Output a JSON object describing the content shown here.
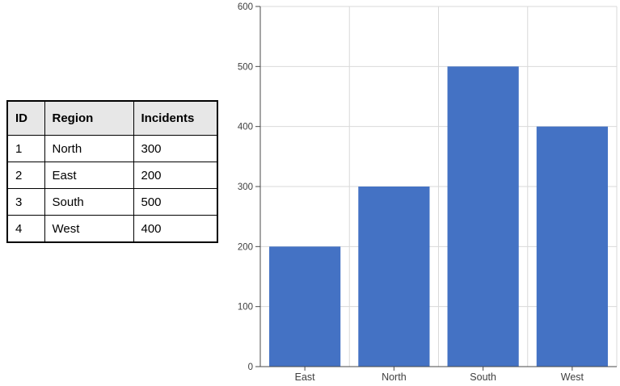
{
  "table": {
    "headers": [
      "ID",
      "Region",
      "Incidents"
    ],
    "rows": [
      [
        "1",
        "North",
        "300"
      ],
      [
        "2",
        "East",
        "200"
      ],
      [
        "3",
        "South",
        "500"
      ],
      [
        "4",
        "West",
        "400"
      ]
    ]
  },
  "chart_data": {
    "type": "bar",
    "categories": [
      "East",
      "North",
      "South",
      "West"
    ],
    "values": [
      200,
      300,
      500,
      400
    ],
    "title": "",
    "xlabel": "",
    "ylabel": "",
    "ylim": [
      0,
      600
    ],
    "ytick_interval": 100,
    "yticks": [
      0,
      100,
      200,
      300,
      400,
      500,
      600
    ],
    "grid": true,
    "legend": "none",
    "bar_color": "#4472c4",
    "grid_color": "#d9d9d9",
    "axis_color": "#4a4a4a",
    "label_color": "#404040"
  }
}
